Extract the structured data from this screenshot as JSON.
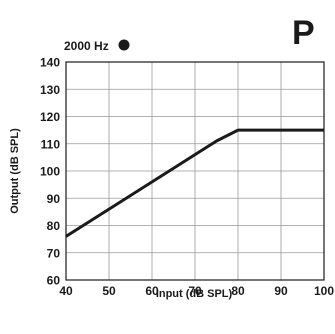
{
  "corner_letter": "P",
  "chart_data": {
    "type": "line",
    "xlabel": "Input (dB SPL)",
    "ylabel": "Output (dB SPL)",
    "xlim": [
      40,
      100
    ],
    "ylim": [
      60,
      140
    ],
    "x_ticks": [
      40,
      50,
      60,
      70,
      80,
      90,
      100
    ],
    "y_ticks": [
      60,
      70,
      80,
      90,
      100,
      110,
      120,
      130,
      140
    ],
    "grid": true,
    "legend": {
      "placement": "top-left",
      "entries": [
        {
          "label": "2000 Hz",
          "marker": "filled-circle",
          "color": "#1a1a1a"
        }
      ]
    },
    "series": [
      {
        "name": "2000 Hz",
        "color": "#1a1a1a",
        "points": [
          {
            "x": 40,
            "y": 76
          },
          {
            "x": 75,
            "y": 111
          },
          {
            "x": 80,
            "y": 115
          },
          {
            "x": 100,
            "y": 115
          }
        ]
      }
    ]
  }
}
